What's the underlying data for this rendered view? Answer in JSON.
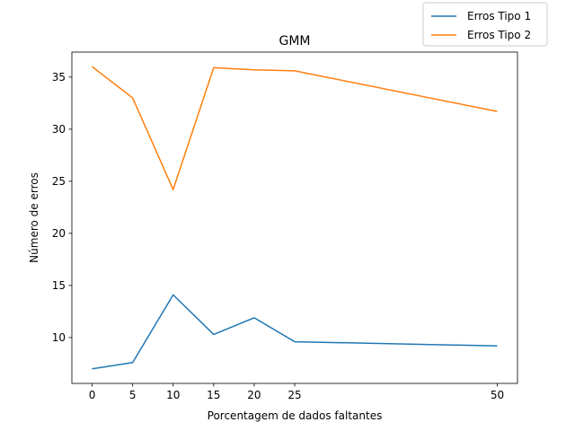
{
  "chart_data": {
    "type": "line",
    "title": "GMM",
    "xlabel": "Porcentagem de dados faltantes",
    "ylabel": "Número de erros",
    "x": [
      0,
      5,
      10,
      15,
      20,
      25,
      50
    ],
    "x_ticks": [
      0,
      5,
      10,
      15,
      20,
      25,
      50
    ],
    "y_ticks": [
      10,
      15,
      20,
      25,
      30,
      35
    ],
    "xlim": [
      -2.5,
      52.5
    ],
    "ylim": [
      5.6,
      37.4
    ],
    "grid": false,
    "legend_position": "top-right",
    "series": [
      {
        "name": "Erros Tipo 1",
        "color": "#1f77b4",
        "values": [
          7.0,
          7.6,
          14.1,
          10.3,
          11.9,
          9.6,
          9.2
        ]
      },
      {
        "name": "Erros Tipo 2",
        "color": "#ff7f0e",
        "values": [
          36.0,
          33.0,
          24.2,
          35.9,
          35.7,
          35.6,
          31.7
        ]
      }
    ]
  }
}
